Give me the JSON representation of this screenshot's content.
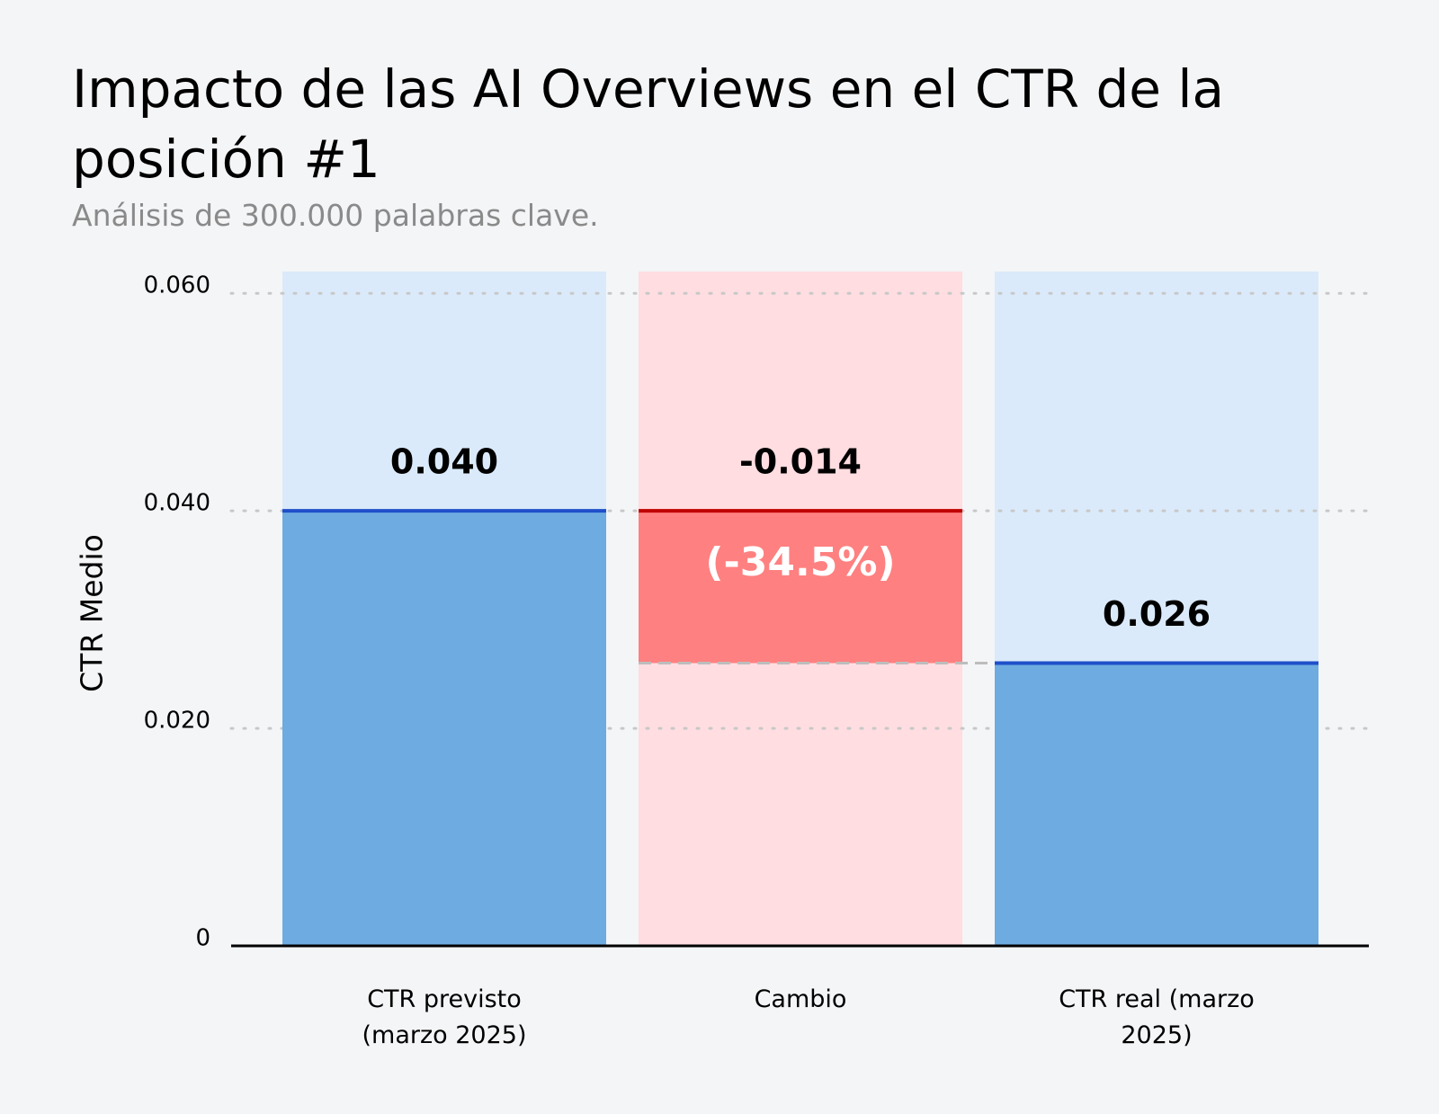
{
  "chart_data": {
    "type": "waterfall",
    "title": "Impacto de las AI Overviews en el CTR de la posición #1",
    "subtitle": "Análisis de 300.000 palabras clave.",
    "y_label": "CTR Medio",
    "categories": [
      "CTR previsto (marzo 2025)",
      "Cambio",
      "CTR real (marzo 2025)"
    ],
    "values": [
      0.04,
      -0.014,
      0.026
    ],
    "value_labels": [
      "0.040",
      "-0.014",
      "0.026"
    ],
    "annotation": "(-34.5%)",
    "colors": [
      "#6eabe0",
      "#ff8080",
      "#6eabe0"
    ],
    "ylim": [
      0,
      0.062
    ],
    "yticks": [
      0,
      {
        "value": 0.02,
        "label": "0.020"
      },
      {
        "value": 0.04,
        "label": "0.040"
      },
      {
        "value": 0.06,
        "label": "0.060"
      }
    ],
    "grid": true
  }
}
